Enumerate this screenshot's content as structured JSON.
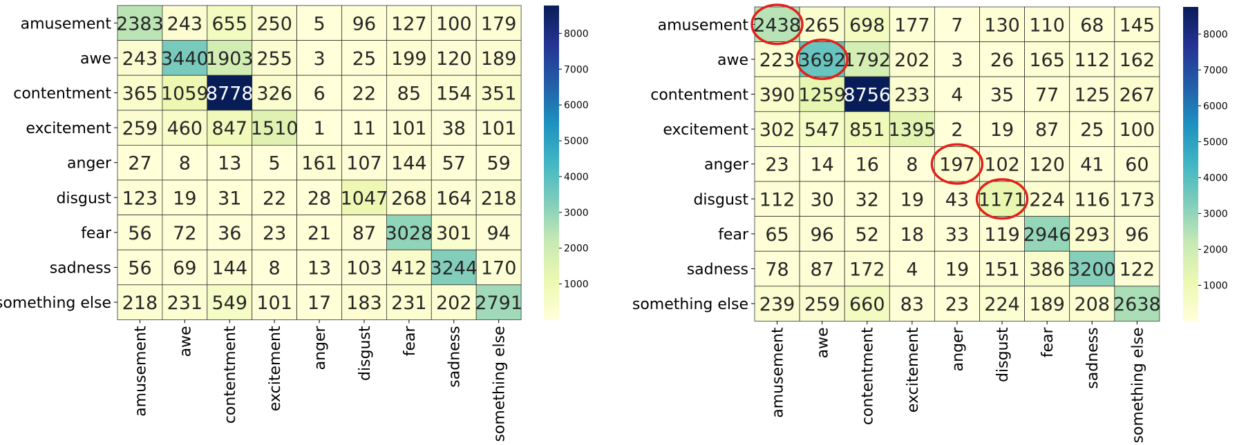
{
  "chart_data": [
    {
      "type": "heatmap",
      "rows": [
        "amusement",
        "awe",
        "contentment",
        "excitement",
        "anger",
        "disgust",
        "fear",
        "sadness",
        "something else"
      ],
      "columns": [
        "amusement",
        "awe",
        "contentment",
        "excitement",
        "anger",
        "disgust",
        "fear",
        "sadness",
        "something else"
      ],
      "values": [
        [
          2383,
          243,
          655,
          250,
          5,
          96,
          127,
          100,
          179
        ],
        [
          243,
          3440,
          1903,
          255,
          3,
          25,
          199,
          120,
          189
        ],
        [
          365,
          1059,
          8778,
          326,
          6,
          22,
          85,
          154,
          351
        ],
        [
          259,
          460,
          847,
          1510,
          1,
          11,
          101,
          38,
          101
        ],
        [
          27,
          8,
          13,
          5,
          161,
          107,
          144,
          57,
          59
        ],
        [
          123,
          19,
          31,
          22,
          28,
          1047,
          268,
          164,
          218
        ],
        [
          56,
          72,
          36,
          23,
          21,
          87,
          3028,
          301,
          94
        ],
        [
          56,
          69,
          144,
          8,
          13,
          103,
          412,
          3244,
          170
        ],
        [
          218,
          231,
          549,
          101,
          17,
          183,
          231,
          202,
          2791
        ]
      ],
      "colorbar": {
        "min": 1,
        "max": 8778,
        "ticks": [
          1000,
          2000,
          3000,
          4000,
          5000,
          6000,
          7000,
          8000
        ],
        "colormap": "YlGnBu"
      },
      "highlighted": []
    },
    {
      "type": "heatmap",
      "rows": [
        "amusement",
        "awe",
        "contentment",
        "excitement",
        "anger",
        "disgust",
        "fear",
        "sadness",
        "something else"
      ],
      "columns": [
        "amusement",
        "awe",
        "contentment",
        "excitement",
        "anger",
        "disgust",
        "fear",
        "sadness",
        "something else"
      ],
      "values": [
        [
          2438,
          265,
          698,
          177,
          7,
          130,
          110,
          68,
          145
        ],
        [
          223,
          3692,
          1792,
          202,
          3,
          26,
          165,
          112,
          162
        ],
        [
          390,
          1259,
          8756,
          233,
          4,
          35,
          77,
          125,
          267
        ],
        [
          302,
          547,
          851,
          1395,
          2,
          19,
          87,
          25,
          100
        ],
        [
          23,
          14,
          16,
          8,
          197,
          102,
          120,
          41,
          60
        ],
        [
          112,
          30,
          32,
          19,
          43,
          1171,
          224,
          116,
          173
        ],
        [
          65,
          96,
          52,
          18,
          33,
          119,
          2946,
          293,
          96
        ],
        [
          78,
          87,
          172,
          4,
          19,
          151,
          386,
          3200,
          122
        ],
        [
          239,
          259,
          660,
          83,
          23,
          224,
          189,
          208,
          2638
        ]
      ],
      "colorbar": {
        "min": 2,
        "max": 8756,
        "ticks": [
          1000,
          2000,
          3000,
          4000,
          5000,
          6000,
          7000,
          8000
        ],
        "colormap": "YlGnBu"
      },
      "highlighted": [
        [
          0,
          0
        ],
        [
          1,
          1
        ],
        [
          4,
          4
        ],
        [
          5,
          5
        ]
      ],
      "highlight_color": "#e3201b"
    }
  ]
}
